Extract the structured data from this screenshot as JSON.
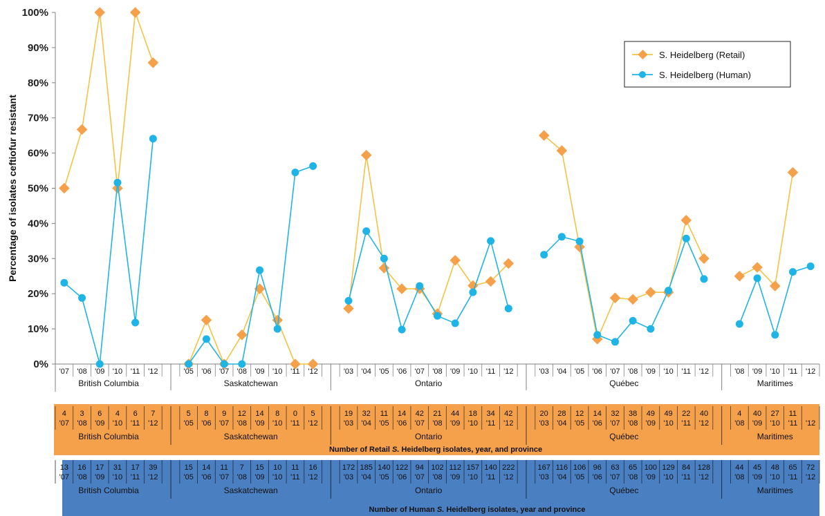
{
  "chart_data": {
    "type": "line",
    "ylabel": "Percentage of isolates ceftiofur resistant",
    "ylim": [
      0,
      100
    ],
    "yticks": [
      "0%",
      "10%",
      "20%",
      "30%",
      "40%",
      "50%",
      "60%",
      "70%",
      "80%",
      "90%",
      "100%"
    ],
    "provinces": [
      {
        "name": "British Columbia",
        "years": [
          "'07",
          "'08",
          "'09",
          "'10",
          "'11",
          "'12"
        ]
      },
      {
        "name": "Saskatchewan",
        "years": [
          "'05",
          "'06",
          "'07",
          "'08",
          "'09",
          "'10",
          "'11",
          "'12"
        ]
      },
      {
        "name": "Ontario",
        "years": [
          "'03",
          "'04",
          "'05",
          "'06",
          "'07",
          "'08",
          "'09",
          "'10",
          "'11",
          "'12"
        ]
      },
      {
        "name": "Québec",
        "years": [
          "'03",
          "'04",
          "'05",
          "'06",
          "'07",
          "'08",
          "'09",
          "'10",
          "'11",
          "'12"
        ]
      },
      {
        "name": "Maritimes",
        "years": [
          "'08",
          "'09",
          "'10",
          "'11",
          "'12"
        ]
      }
    ],
    "series": [
      {
        "name": "S. Heidelberg (Retail)",
        "color": "#F5A04A",
        "line_color": "#F5C242",
        "values": [
          [
            50,
            66.7,
            100,
            50,
            100,
            85.7
          ],
          [
            0,
            12.5,
            0,
            8.3,
            21.4,
            12.5,
            0,
            0
          ],
          [
            15.8,
            59.4,
            27.3,
            21.4,
            21.4,
            14.3,
            29.5,
            22.3,
            23.5,
            28.6
          ],
          [
            65,
            60.7,
            33.3,
            7.1,
            18.8,
            18.4,
            20.4,
            20.4,
            40.9,
            30
          ],
          [
            25,
            27.5,
            22.2,
            54.5,
            null
          ]
        ]
      },
      {
        "name": "S. Heidelberg (Human)",
        "color": "#1EB4E6",
        "line_color": "#1EB4E6",
        "values": [
          [
            23.1,
            18.8,
            0,
            51.6,
            11.8,
            64.1
          ],
          [
            0,
            7.1,
            0,
            0,
            26.7,
            10,
            54.5,
            56.3
          ],
          [
            18,
            37.8,
            30,
            9.8,
            22.2,
            13.7,
            11.6,
            20.4,
            35,
            15.8
          ],
          [
            31.1,
            36.2,
            34.9,
            8.3,
            6.3,
            12.3,
            10,
            20.9,
            35.7,
            24.2
          ],
          [
            11.4,
            24.4,
            8.3,
            26.2,
            27.8
          ]
        ]
      }
    ],
    "legend_position": "top-right"
  },
  "retail_counts": {
    "title": "Number of Retail S. Heidelberg isolates, year, and province",
    "counts": [
      [
        "4",
        "3",
        "6",
        "4",
        "6",
        "7"
      ],
      [
        "5",
        "8",
        "9",
        "12",
        "14",
        "8",
        "0",
        "5"
      ],
      [
        "19",
        "32",
        "11",
        "14",
        "42",
        "21",
        "44",
        "18",
        "34",
        "42"
      ],
      [
        "20",
        "28",
        "12",
        "14",
        "32",
        "38",
        "49",
        "49",
        "22",
        "40"
      ],
      [
        "4",
        "40",
        "27",
        "11",
        ""
      ]
    ]
  },
  "human_counts": {
    "title": "Number of Human S. Heidelberg isolates, year and province",
    "counts": [
      [
        "13",
        "16",
        "17",
        "31",
        "17",
        "39"
      ],
      [
        "15",
        "14",
        "11",
        "7",
        "15",
        "10",
        "11",
        "16"
      ],
      [
        "172",
        "185",
        "140",
        "122",
        "94",
        "102",
        "112",
        "157",
        "140",
        "222"
      ],
      [
        "167",
        "116",
        "106",
        "96",
        "63",
        "65",
        "100",
        "129",
        "84",
        "128"
      ],
      [
        "44",
        "45",
        "48",
        "65",
        "72"
      ]
    ]
  },
  "colors": {
    "retail_band": "#F5A04A",
    "human_band": "#4A7FC1",
    "axis": "#808080"
  }
}
